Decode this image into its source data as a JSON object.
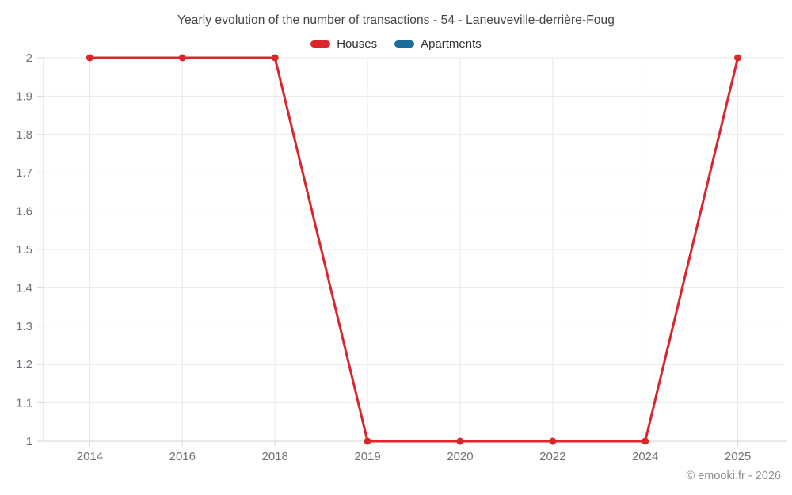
{
  "page": {
    "background_color": "#ffffff"
  },
  "header": {
    "title": "Yearly evolution of the number of transactions - 54 - Laneuveville-derrière-Foug"
  },
  "legend": {
    "items": [
      {
        "label": "Houses",
        "color": "#d9252b"
      },
      {
        "label": "Apartments",
        "color": "#1a6d9a"
      }
    ]
  },
  "footer": {
    "copyright": "© emooki.fr - 2026"
  },
  "chart_data": {
    "type": "line",
    "title": "Yearly evolution of the number of transactions - 54 - Laneuveville-derrière-Foug",
    "categories": [
      "2014",
      "2016",
      "2018",
      "2019",
      "2020",
      "2022",
      "2024",
      "2025"
    ],
    "series": [
      {
        "name": "Houses",
        "color": "#d9252b",
        "values": [
          2,
          2,
          2,
          1,
          1,
          1,
          1,
          2
        ],
        "show_points": true
      },
      {
        "name": "Apartments",
        "color": "#1a6d9a",
        "values": [],
        "show_points": true
      }
    ],
    "xlabel": "",
    "ylabel": "",
    "ylim": [
      1,
      2
    ],
    "y_tick_labels": [
      "1",
      "1.1",
      "1.2",
      "1.3",
      "1.4",
      "1.5",
      "1.6",
      "1.7",
      "1.8",
      "1.9",
      "2"
    ],
    "grid": true,
    "legend_position": "top",
    "styles": {
      "axis_label_color": "#6e7079",
      "axis_label_size": 15,
      "grid_color": "#e9e9e9",
      "axis_line_color": "#d6d6d6",
      "line_width": 3,
      "point_radius": 4.5
    }
  }
}
